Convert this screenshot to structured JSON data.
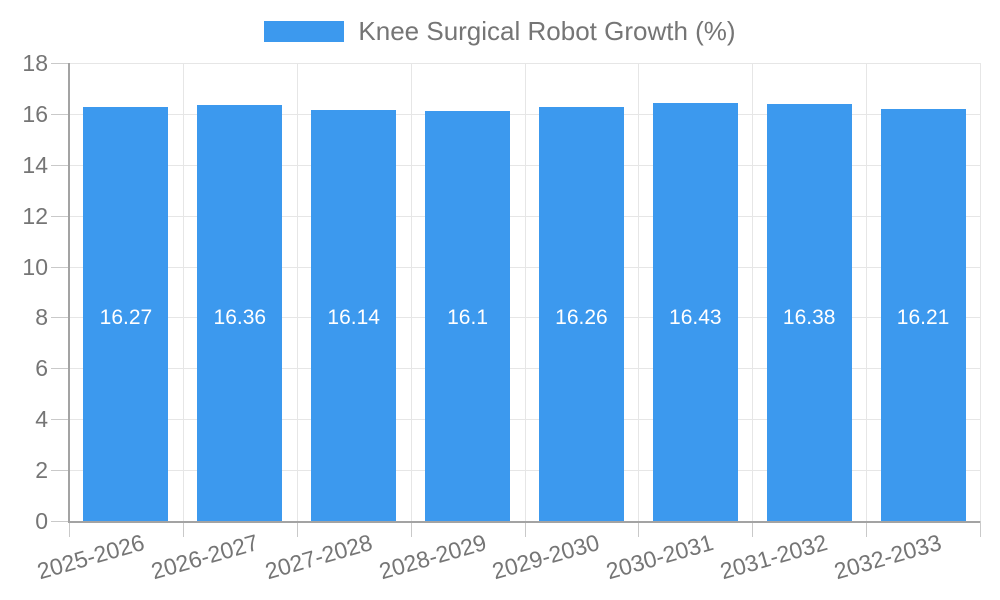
{
  "legend": {
    "label": "Knee Surgical Robot Growth (%)"
  },
  "chart_data": {
    "type": "bar",
    "title": "Knee Surgical Robot Growth (%)",
    "categories": [
      "2025-2026",
      "2026-2027",
      "2027-2028",
      "2028-2029",
      "2029-2030",
      "2030-2031",
      "2031-2032",
      "2032-2033"
    ],
    "values": [
      16.27,
      16.36,
      16.14,
      16.1,
      16.26,
      16.43,
      16.38,
      16.21
    ],
    "value_labels": [
      "16.27",
      "16.36",
      "16.14",
      "16.1",
      "16.26",
      "16.43",
      "16.38",
      "16.21"
    ],
    "xlabel": "",
    "ylabel": "",
    "ylim": [
      0,
      18
    ],
    "yticks": [
      0,
      2,
      4,
      6,
      8,
      10,
      12,
      14,
      16,
      18
    ],
    "grid": true,
    "legend_position": "top-center",
    "colors": {
      "bar": "#3C99EE",
      "text": "#757575",
      "value_text": "#ffffff",
      "grid": "#e6e6e6",
      "axis_line": "#a3a3a3",
      "tick_line": "#c9c9c9"
    }
  }
}
